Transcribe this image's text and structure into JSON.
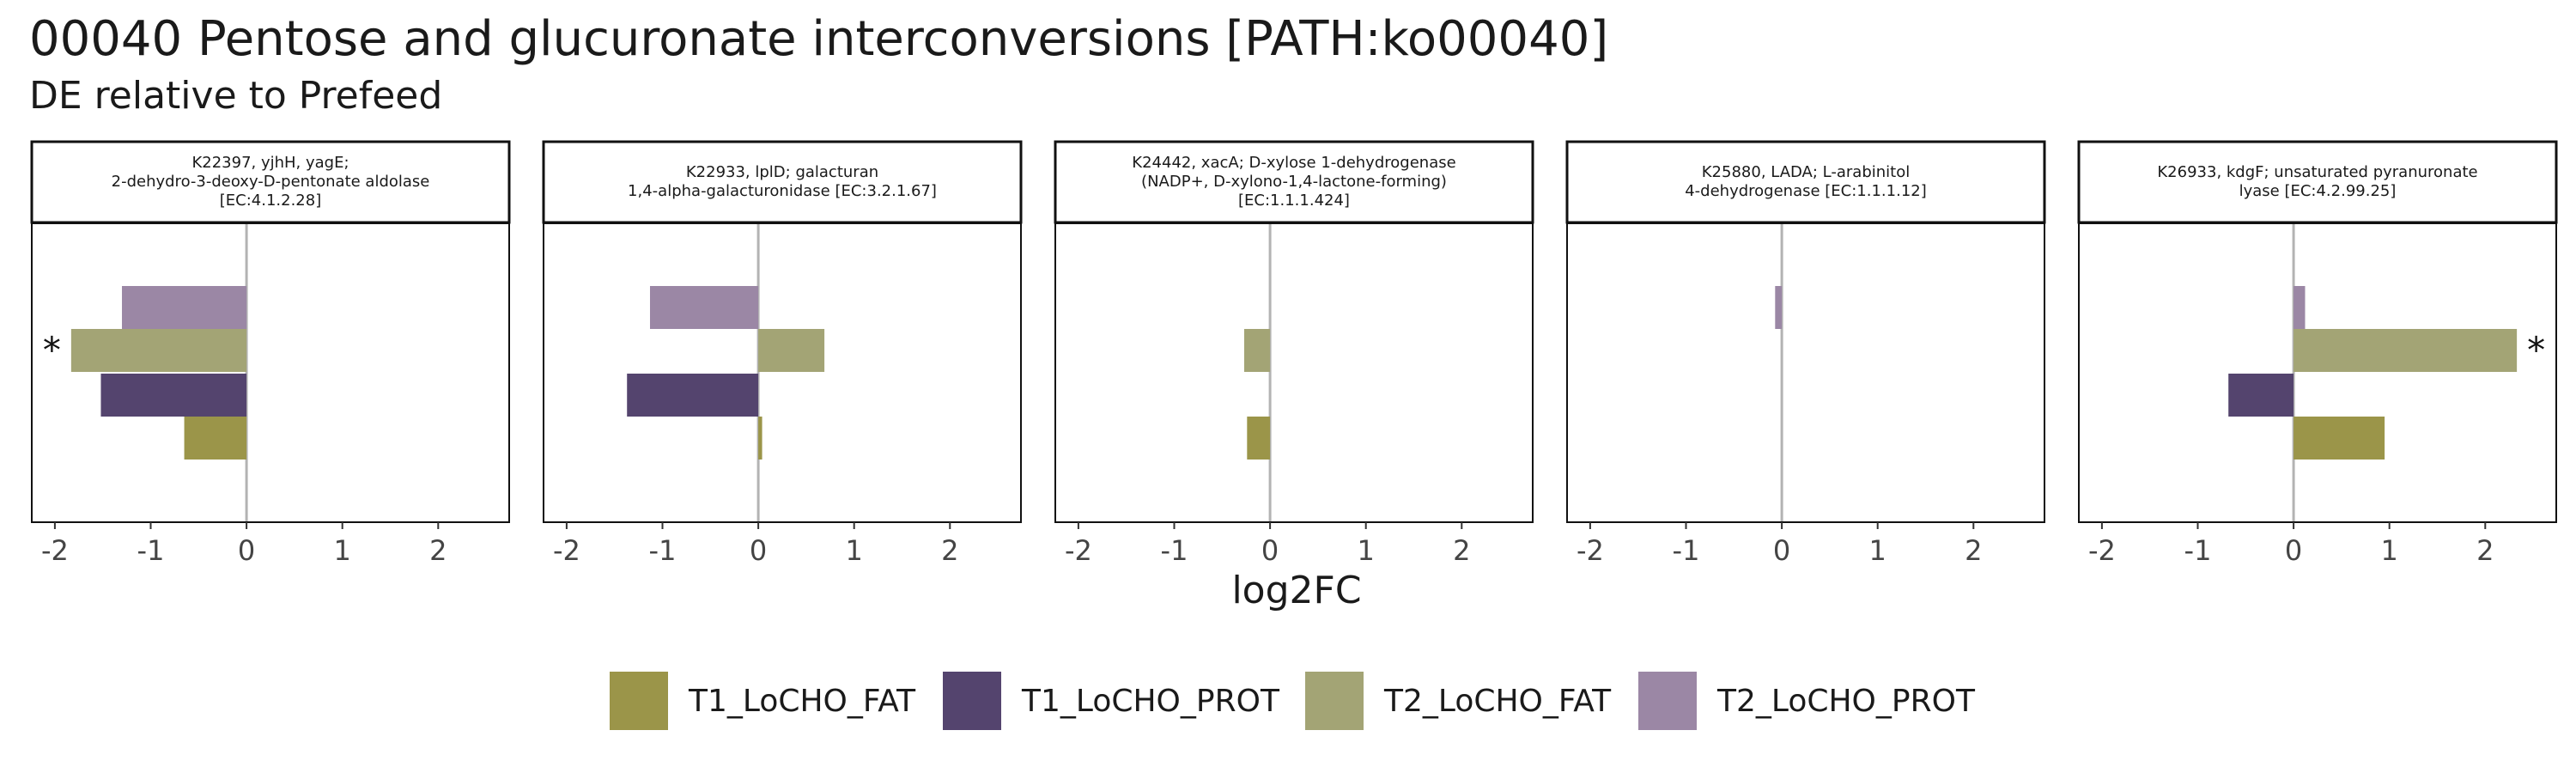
{
  "title": "00040 Pentose and glucuronate interconversions [PATH:ko00040]",
  "subtitle": "DE relative to Prefeed",
  "chart_data": {
    "type": "bar",
    "orientation": "horizontal",
    "xlabel": "log2FC",
    "xlim": [
      -2.25,
      2.75
    ],
    "x_ticks": [
      "-2",
      "-1",
      "0",
      "1",
      "2"
    ],
    "x_tick_values": [
      -2,
      -1,
      0,
      1,
      2
    ],
    "legend_position": "bottom",
    "series": [
      {
        "name": "T1_LoCHO_FAT",
        "color": "#9b9549"
      },
      {
        "name": "T1_LoCHO_PROT",
        "color": "#54446e"
      },
      {
        "name": "T2_LoCHO_FAT",
        "color": "#a3a475"
      },
      {
        "name": "T2_LoCHO_PROT",
        "color": "#9b87a5"
      }
    ],
    "panels": [
      {
        "title": "K22397, yjhH, yagE;\n2-dehydro-3-deoxy-D-pentonate aldolase\n[EC:4.1.2.28]",
        "values": {
          "T1_LoCHO_FAT": -0.65,
          "T1_LoCHO_PROT": -1.52,
          "T2_LoCHO_FAT": -1.83,
          "T2_LoCHO_PROT": -1.3
        },
        "significant": {
          "T2_LoCHO_FAT": "*"
        }
      },
      {
        "title": "K22933, lplD; galacturan\n1,4-alpha-galacturonidase [EC:3.2.1.67]",
        "values": {
          "T1_LoCHO_FAT": 0.04,
          "T1_LoCHO_PROT": -1.37,
          "T2_LoCHO_FAT": 0.69,
          "T2_LoCHO_PROT": -1.13
        },
        "significant": {}
      },
      {
        "title": "K24442, xacA; D-xylose 1-dehydrogenase\n(NADP+, D-xylono-1,4-lactone-forming)\n[EC:1.1.1.424]",
        "values": {
          "T1_LoCHO_FAT": -0.24,
          "T1_LoCHO_PROT": 0,
          "T2_LoCHO_FAT": -0.27,
          "T2_LoCHO_PROT": 0
        },
        "significant": {}
      },
      {
        "title": "K25880, LADA; L-arabinitol\n4-dehydrogenase [EC:1.1.1.12]",
        "values": {
          "T1_LoCHO_FAT": 0,
          "T1_LoCHO_PROT": 0,
          "T2_LoCHO_FAT": 0,
          "T2_LoCHO_PROT": -0.07
        },
        "significant": {}
      },
      {
        "title": "K26933, kdgF; unsaturated pyranuronate\nlyase [EC:4.2.99.25]",
        "values": {
          "T1_LoCHO_FAT": 0.95,
          "T1_LoCHO_PROT": -0.68,
          "T2_LoCHO_FAT": 2.33,
          "T2_LoCHO_PROT": 0.12
        },
        "significant": {
          "T2_LoCHO_FAT": "*"
        }
      }
    ]
  }
}
